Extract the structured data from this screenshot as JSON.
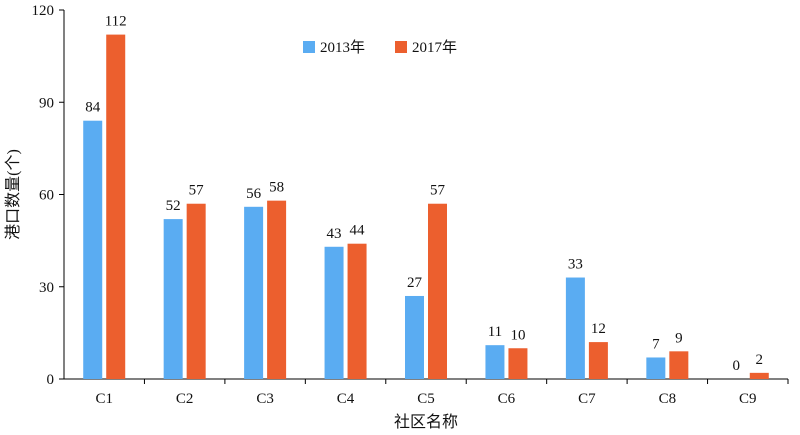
{
  "chart_data": {
    "type": "bar",
    "categories": [
      "C1",
      "C2",
      "C3",
      "C4",
      "C5",
      "C6",
      "C7",
      "C8",
      "C9"
    ],
    "series": [
      {
        "name": "2013年",
        "color": "#5aacf2",
        "values": [
          84,
          52,
          56,
          43,
          27,
          11,
          33,
          7,
          0
        ]
      },
      {
        "name": "2017年",
        "color": "#ec5f2e",
        "values": [
          112,
          57,
          58,
          44,
          57,
          10,
          12,
          9,
          2
        ]
      }
    ],
    "xlabel": "社区名称",
    "ylabel": "港口数量(个)",
    "ylim": [
      0,
      120
    ],
    "yticks": [
      0,
      30,
      60,
      90,
      120
    ],
    "grid": false,
    "legend_position": "top-center"
  }
}
